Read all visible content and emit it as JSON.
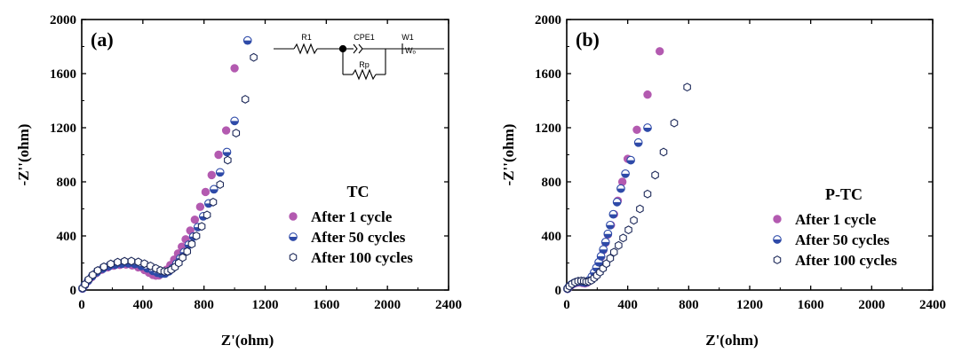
{
  "chart_data": [
    {
      "type": "scatter",
      "panel_label": "(a)",
      "legend_title": "TC",
      "xlabel": "Z'(ohm)",
      "ylabel": "-Z''(ohm)",
      "xlim": [
        0,
        2400
      ],
      "ylim": [
        0,
        2000
      ],
      "xticks": [
        0,
        400,
        800,
        1200,
        1600,
        2000,
        2400
      ],
      "yticks": [
        0,
        400,
        800,
        1200,
        1600,
        2000
      ],
      "grid": false,
      "legend_position": "right",
      "circuit_labels": [
        "R1",
        "CPE1",
        "W1",
        "Rp"
      ],
      "series": [
        {
          "name": "After 1 cycle",
          "marker": "filled-circle",
          "color": "#b35ab0",
          "x": [
            5,
            20,
            40,
            65,
            95,
            130,
            170,
            210,
            250,
            290,
            330,
            370,
            410,
            440,
            465,
            485,
            505,
            530,
            555,
            580,
            605,
            630,
            655,
            680,
            710,
            740,
            775,
            810,
            850,
            895,
            945,
            1000
          ],
          "y": [
            10,
            35,
            65,
            95,
            125,
            150,
            168,
            180,
            186,
            188,
            182,
            168,
            148,
            128,
            112,
            106,
            108,
            125,
            150,
            185,
            225,
            270,
            320,
            375,
            440,
            520,
            615,
            725,
            850,
            1000,
            1180,
            1640
          ]
        },
        {
          "name": "After 50 cycles",
          "marker": "half-filled-circle",
          "color": "#2e4aa8",
          "x": [
            5,
            20,
            42,
            68,
            100,
            138,
            178,
            220,
            262,
            305,
            348,
            390,
            430,
            465,
            495,
            520,
            545,
            570,
            595,
            620,
            645,
            670,
            700,
            730,
            760,
            795,
            830,
            865,
            905,
            950,
            1000,
            1085
          ],
          "y": [
            12,
            38,
            70,
            102,
            132,
            158,
            176,
            188,
            195,
            197,
            192,
            178,
            160,
            142,
            128,
            120,
            122,
            138,
            162,
            195,
            235,
            280,
            335,
            395,
            465,
            545,
            640,
            745,
            870,
            1020,
            1250,
            1845
          ]
        },
        {
          "name": "After 100 cycles",
          "marker": "open-hexagon",
          "color": "#1e2a5a",
          "x": [
            5,
            22,
            45,
            72,
            105,
            145,
            190,
            235,
            280,
            325,
            370,
            410,
            450,
            485,
            515,
            540,
            562,
            585,
            610,
            635,
            660,
            690,
            720,
            750,
            785,
            820,
            860,
            905,
            955,
            1010,
            1070,
            1125
          ],
          "y": [
            14,
            42,
            78,
            112,
            145,
            172,
            193,
            206,
            213,
            214,
            208,
            195,
            178,
            160,
            145,
            137,
            138,
            150,
            170,
            200,
            240,
            285,
            340,
            400,
            470,
            555,
            650,
            780,
            960,
            1160,
            1410,
            1720
          ]
        }
      ]
    },
    {
      "type": "scatter",
      "panel_label": "(b)",
      "legend_title": "P-TC",
      "xlabel": "Z'(ohm)",
      "ylabel": "-Z''(ohm)",
      "xlim": [
        0,
        2400
      ],
      "ylim": [
        0,
        2000
      ],
      "xticks": [
        0,
        400,
        800,
        1200,
        1600,
        2000,
        2400
      ],
      "yticks": [
        0,
        400,
        800,
        1200,
        1600,
        2000
      ],
      "grid": false,
      "legend_position": "right",
      "series": [
        {
          "name": "After 1 cycle",
          "marker": "filled-circle",
          "color": "#b35ab0",
          "x": [
            5,
            15,
            30,
            50,
            70,
            90,
            105,
            120,
            135,
            150,
            165,
            180,
            195,
            210,
            225,
            240,
            255,
            270,
            290,
            310,
            335,
            365,
            400,
            460,
            530,
            610
          ],
          "y": [
            8,
            20,
            35,
            48,
            55,
            56,
            52,
            50,
            55,
            70,
            95,
            125,
            160,
            200,
            245,
            295,
            350,
            410,
            480,
            560,
            660,
            800,
            970,
            1185,
            1445,
            1765
          ]
        },
        {
          "name": "After 50 cycles",
          "marker": "half-filled-circle",
          "color": "#2e4aa8",
          "x": [
            5,
            15,
            30,
            48,
            68,
            88,
            105,
            120,
            135,
            150,
            165,
            180,
            195,
            210,
            225,
            240,
            255,
            270,
            285,
            305,
            330,
            355,
            385,
            420,
            470,
            530
          ],
          "y": [
            10,
            25,
            40,
            52,
            60,
            62,
            58,
            55,
            60,
            75,
            100,
            130,
            165,
            205,
            250,
            300,
            355,
            415,
            480,
            560,
            650,
            750,
            860,
            960,
            1090,
            1200
          ]
        },
        {
          "name": "After 100 cycles",
          "marker": "open-hexagon",
          "color": "#1e2a5a",
          "x": [
            5,
            18,
            35,
            55,
            75,
            95,
            112,
            128,
            145,
            162,
            180,
            198,
            218,
            238,
            260,
            285,
            310,
            340,
            370,
            405,
            440,
            480,
            530,
            580,
            635,
            705,
            790
          ],
          "y": [
            10,
            28,
            45,
            58,
            66,
            68,
            66,
            62,
            64,
            72,
            88,
            108,
            132,
            160,
            195,
            235,
            280,
            330,
            385,
            445,
            515,
            600,
            710,
            850,
            1020,
            1235,
            1500
          ]
        }
      ]
    }
  ]
}
